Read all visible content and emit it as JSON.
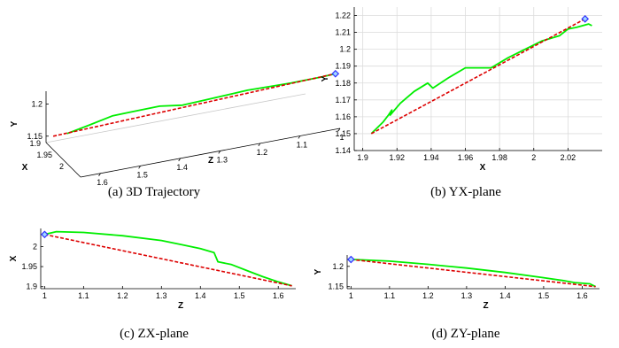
{
  "chart_data": [
    {
      "id": "a",
      "type": "line",
      "caption": "(a) 3D Trajectory",
      "xlabel": "X",
      "ylabel": "Y",
      "zlabel": "Z",
      "x_ticks": [
        "1.9",
        "1.95",
        "2"
      ],
      "y_ticks": [
        "1.15",
        "1.2"
      ],
      "z_ticks": [
        "1.6",
        "1.5",
        "1.4",
        "1.3",
        "1.2",
        "1.1",
        "1"
      ],
      "series": [
        {
          "color": "#00ee00",
          "style": "solid",
          "points": [
            [
              1.905,
              1.6,
              1.15
            ],
            [
              1.913,
              1.55,
              1.16
            ],
            [
              1.93,
              1.5,
              1.175
            ],
            [
              1.94,
              1.45,
              1.18
            ],
            [
              1.96,
              1.4,
              1.189
            ],
            [
              1.972,
              1.35,
              1.189
            ],
            [
              1.985,
              1.3,
              1.196
            ],
            [
              1.995,
              1.2,
              1.203
            ],
            [
              2.01,
              1.1,
              1.208
            ],
            [
              2.025,
              1.03,
              1.215
            ],
            [
              2.03,
              1.0,
              1.218
            ]
          ]
        },
        {
          "color": "#dd0000",
          "style": "dashed",
          "points": [
            [
              1.905,
              1.635,
              1.15
            ],
            [
              2.03,
              1.0,
              1.218
            ]
          ]
        }
      ],
      "marker": {
        "point": [
          2.03,
          1.0,
          1.218
        ],
        "color": "#3030ff",
        "shape": "diamond"
      }
    },
    {
      "id": "b",
      "type": "line",
      "caption": "(b) YX-plane",
      "xlabel": "X",
      "ylabel": "Y",
      "xlim": [
        1.895,
        2.04
      ],
      "ylim": [
        1.14,
        1.225
      ],
      "x_ticks": [
        1.9,
        1.92,
        1.94,
        1.96,
        1.98,
        2,
        2.02
      ],
      "y_ticks": [
        1.14,
        1.15,
        1.16,
        1.17,
        1.18,
        1.19,
        1.2,
        1.21,
        1.22
      ],
      "series": [
        {
          "color": "#00ee00",
          "style": "solid",
          "x": [
            1.905,
            1.912,
            1.915,
            1.917,
            1.916,
            1.922,
            1.93,
            1.938,
            1.941,
            1.95,
            1.96,
            1.968,
            1.975,
            1.985,
            1.995,
            2.005,
            2.015,
            2.02,
            2.025,
            2.032,
            2.034
          ],
          "y": [
            1.15,
            1.157,
            1.161,
            1.164,
            1.161,
            1.168,
            1.175,
            1.18,
            1.177,
            1.183,
            1.189,
            1.189,
            1.189,
            1.195,
            1.2,
            1.205,
            1.208,
            1.212,
            1.213,
            1.215,
            1.214
          ]
        },
        {
          "color": "#dd0000",
          "style": "dashed",
          "x": [
            1.905,
            2.03
          ],
          "y": [
            1.15,
            1.218
          ]
        }
      ],
      "marker": {
        "x": 2.03,
        "y": 1.218,
        "color": "#3030ff",
        "shape": "diamond"
      }
    },
    {
      "id": "c",
      "type": "line",
      "caption": "(c) ZX-plane",
      "xlabel": "Z",
      "ylabel": "X",
      "xlim": [
        0.99,
        1.645
      ],
      "ylim": [
        1.895,
        2.045
      ],
      "x_ticks": [
        1,
        1.1,
        1.2,
        1.3,
        1.4,
        1.5,
        1.6
      ],
      "y_ticks": [
        1.9,
        1.95,
        2
      ],
      "series": [
        {
          "color": "#00ee00",
          "style": "solid",
          "x": [
            1.0,
            1.03,
            1.1,
            1.2,
            1.3,
            1.35,
            1.4,
            1.435,
            1.445,
            1.48,
            1.52,
            1.56,
            1.6,
            1.635
          ],
          "y": [
            2.03,
            2.037,
            2.035,
            2.027,
            2.015,
            2.005,
            1.995,
            1.985,
            1.962,
            1.955,
            1.94,
            1.925,
            1.912,
            1.902
          ]
        },
        {
          "color": "#dd0000",
          "style": "dashed",
          "x": [
            1.0,
            1.635
          ],
          "y": [
            2.03,
            1.902
          ]
        }
      ],
      "marker": {
        "x": 1.0,
        "y": 2.03,
        "color": "#3030ff",
        "shape": "diamond"
      }
    },
    {
      "id": "d",
      "type": "line",
      "caption": "(d) ZY-plane",
      "xlabel": "Z",
      "ylabel": "Y",
      "xlim": [
        0.99,
        1.645
      ],
      "ylim": [
        1.145,
        1.228
      ],
      "x_ticks": [
        1,
        1.1,
        1.2,
        1.3,
        1.4,
        1.5,
        1.6
      ],
      "y_ticks": [
        1.15,
        1.2
      ],
      "series": [
        {
          "color": "#00ee00",
          "style": "solid",
          "x": [
            1.0,
            1.03,
            1.1,
            1.2,
            1.3,
            1.4,
            1.5,
            1.55,
            1.58,
            1.62,
            1.635
          ],
          "y": [
            1.217,
            1.216,
            1.213,
            1.205,
            1.196,
            1.185,
            1.172,
            1.165,
            1.16,
            1.157,
            1.15
          ]
        },
        {
          "color": "#dd0000",
          "style": "dashed",
          "x": [
            1.0,
            1.635
          ],
          "y": [
            1.217,
            1.15
          ]
        }
      ],
      "marker": {
        "x": 1.0,
        "y": 1.217,
        "color": "#3030ff",
        "shape": "diamond"
      }
    }
  ]
}
